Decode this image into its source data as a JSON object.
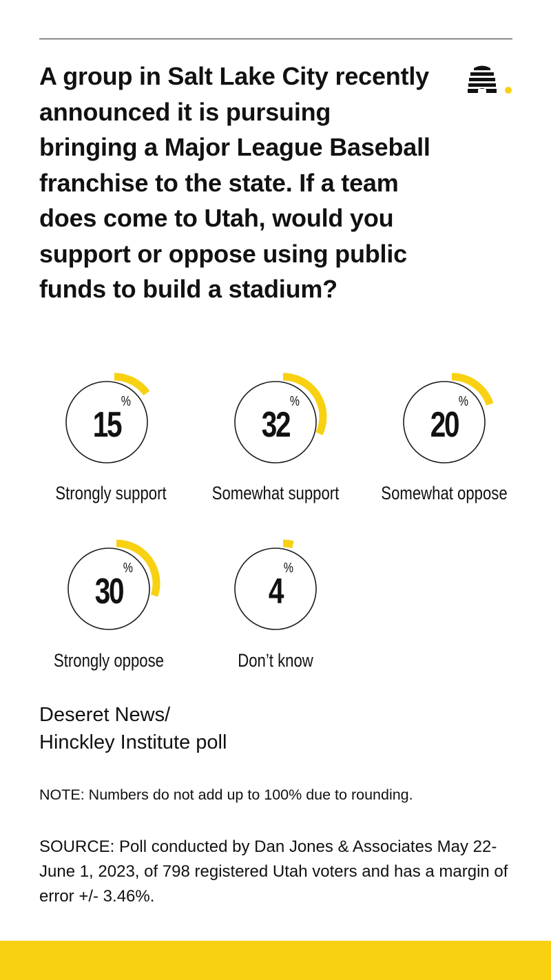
{
  "question": "A group in Salt Lake City recently announced it is pursuing bringing a Major League Baseball franchise to the state. If a team does come to Utah, would you support or oppose using public funds to build a stadium?",
  "chart_data": {
    "type": "donut",
    "unit": "%",
    "categories": [
      "Strongly support",
      "Somewhat support",
      "Somewhat oppose",
      "Strongly oppose",
      "Don’t know"
    ],
    "values": [
      15,
      32,
      20,
      30,
      4
    ]
  },
  "source_title_line1": "Deseret News/",
  "source_title_line2": "Hinckley Institute poll",
  "note": "NOTE: Numbers do not add up to 100% due to rounding.",
  "source": "SOURCE: Poll conducted by Dan Jones & Associates May 22-June 1, 2023, of 798 registered Utah voters and has a margin of error +/- 3.46%.",
  "colors": {
    "accent": "#f8d113",
    "text": "#111111",
    "ring": "#1a1a1a",
    "background": "#ffffff"
  },
  "icons": {
    "logo": "beehive-logo-icon"
  }
}
